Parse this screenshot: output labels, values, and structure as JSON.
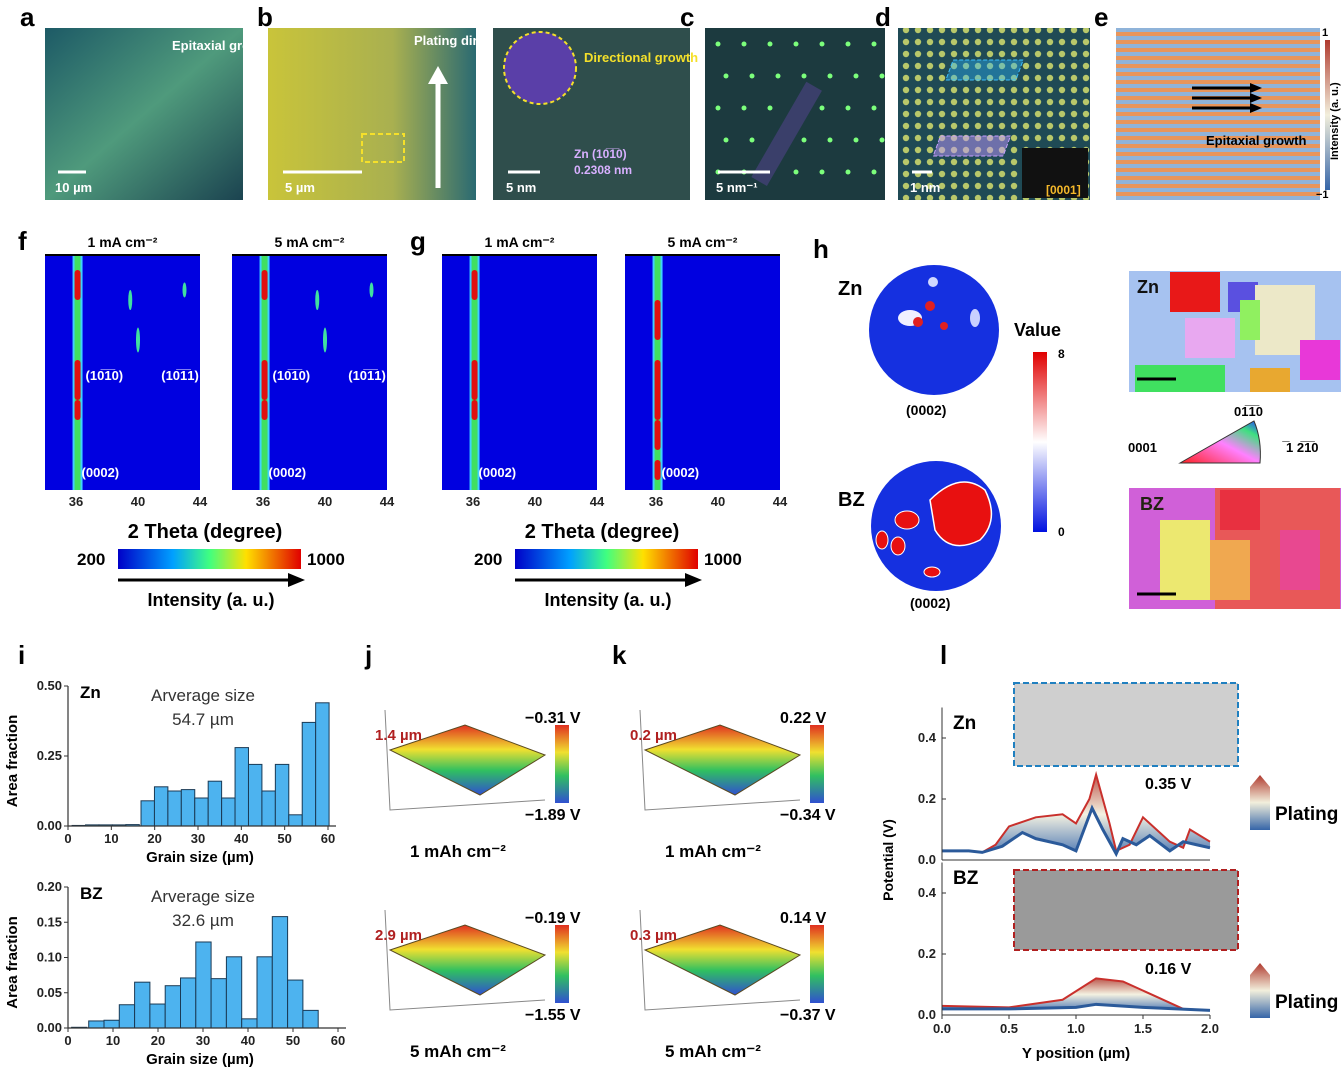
{
  "panel_labels": [
    "a",
    "b",
    "c",
    "d",
    "e",
    "f",
    "g",
    "h",
    "i",
    "j",
    "k",
    "l"
  ],
  "a": {
    "caption": "Epitaxial growth",
    "scale": "10 µm"
  },
  "b": {
    "left_scale": "5 µm",
    "arrow_label": "Plating direction",
    "right_annotation": "Directional growth",
    "plane": "Zn (10̅1̅0)",
    "spacing": "0.2308 nm",
    "right_scale": "5 nm"
  },
  "c": {
    "scale": "5 nm⁻¹"
  },
  "d": {
    "scale": "1 nm",
    "zone_axis": "[0001]"
  },
  "e": {
    "caption": "Epitaxial growth",
    "colorbar_label": "Intensity (a. u.)",
    "colorbar_max": "1",
    "colorbar_min": "−1"
  },
  "f": {
    "titles": [
      "1 mA cm⁻²",
      "5 mA cm⁻²"
    ],
    "peaks": [
      "(10̅1̅0)",
      "(10̅1̅1)",
      "(0002)"
    ],
    "xticks": [
      "36",
      "40",
      "44"
    ],
    "xlabel": "2 Theta (degree)",
    "cbar_min": "200",
    "cbar_max": "1000",
    "cbar_label": "Intensity (a. u.)"
  },
  "g": {
    "titles": [
      "1 mA cm⁻²",
      "5 mA cm⁻²"
    ],
    "peaks": [
      "(0002)"
    ],
    "xticks": [
      "36",
      "40",
      "44"
    ],
    "xlabel": "2 Theta (degree)",
    "cbar_min": "200",
    "cbar_max": "1000",
    "cbar_label": "Intensity (a. u.)"
  },
  "h": {
    "pf_labels": [
      "Zn",
      "BZ"
    ],
    "pf_plane": "(0002)",
    "value_label": "Value",
    "value_max": "8",
    "value_min": "0",
    "ebsd_labels": [
      "Zn",
      "BZ"
    ],
    "ipf": {
      "top": "01̅1̅0",
      "left": "0001",
      "right": "̅1 2̅1̅0"
    }
  },
  "j": {
    "items": [
      {
        "height": "1.4 µm",
        "vmax": "−0.31 V",
        "vmin": "−1.89 V",
        "label": "1 mAh cm⁻²"
      },
      {
        "height": "2.9 µm",
        "vmax": "−0.19 V",
        "vmin": "−1.55 V",
        "label": "5 mAh cm⁻²"
      }
    ]
  },
  "k": {
    "items": [
      {
        "height": "0.2 µm",
        "vmax": "0.22 V",
        "vmin": "−0.34 V",
        "label": "1 mAh cm⁻²"
      },
      {
        "height": "0.3 µm",
        "vmax": "0.14 V",
        "vmin": "−0.37 V",
        "label": "5 mAh cm⁻²"
      }
    ]
  },
  "chart_data": [
    {
      "type": "bar",
      "panel": "i",
      "label": "Zn",
      "annotation": "Arverage size",
      "annotation_value": "54.7 µm",
      "xlabel": "Grain size (µm)",
      "ylabel": "Area fraction",
      "xlim": [
        0,
        62
      ],
      "ylim": [
        0,
        0.5
      ],
      "xticks": [
        0,
        10,
        20,
        30,
        40,
        50,
        60
      ],
      "yticks": [
        "0.00",
        "0.25",
        "0.50"
      ],
      "bin_width": 3.1,
      "bin_centers": [
        2.5,
        5.6,
        8.7,
        11.8,
        14.9,
        18.4,
        21.5,
        24.6,
        27.7,
        30.8,
        33.9,
        37.0,
        40.1,
        43.2,
        46.3,
        49.4,
        52.5,
        55.6,
        58.7
      ],
      "values": [
        0.002,
        0.004,
        0.004,
        0.004,
        0.005,
        0.09,
        0.14,
        0.125,
        0.13,
        0.1,
        0.16,
        0.1,
        0.28,
        0.22,
        0.125,
        0.22,
        0.04,
        0.37,
        0.44
      ],
      "bar_color": "#4db3ef"
    },
    {
      "type": "bar",
      "panel": "i",
      "label": "BZ",
      "annotation": "Arverage size",
      "annotation_value": "32.6 µm",
      "xlabel": "Grain size (µm)",
      "ylabel": "Area fraction",
      "xlim": [
        0,
        60
      ],
      "ylim": [
        0,
        0.2
      ],
      "xticks": [
        0,
        10,
        20,
        30,
        40,
        50,
        60
      ],
      "yticks": [
        "0.00",
        "0.05",
        "0.10",
        "0.15",
        "0.20"
      ],
      "bin_width": 3.4,
      "bin_centers": [
        2.5,
        6.3,
        9.7,
        13.1,
        16.5,
        19.9,
        23.3,
        26.7,
        30.1,
        33.5,
        36.9,
        40.3,
        43.7,
        47.1,
        50.5,
        53.9
      ],
      "values": [
        0.001,
        0.01,
        0.011,
        0.033,
        0.065,
        0.034,
        0.06,
        0.071,
        0.122,
        0.07,
        0.101,
        0.013,
        0.101,
        0.158,
        0.068,
        0.025
      ],
      "bar_color": "#4db3ef"
    },
    {
      "type": "line",
      "panel": "l",
      "xlabel": "Y position (µm)",
      "ylabel": "Potential (V)",
      "xlim": [
        0,
        2.0
      ],
      "xticks": [
        "0.0",
        "0.5",
        "1.0",
        "1.5",
        "2.0"
      ],
      "subplots": [
        {
          "label": "Zn",
          "ylim": [
            0,
            0.5
          ],
          "yticks": [
            "0.0",
            "0.2",
            "0.4"
          ],
          "annotation": "0.35 V",
          "arrow_label": "Plating",
          "series": [
            {
              "x": [
                0,
                0.2,
                0.3,
                0.45,
                0.6,
                0.7,
                0.9,
                1.0,
                1.12,
                1.2,
                1.3,
                1.35,
                1.45,
                1.55,
                1.7,
                1.8,
                1.9,
                2.0
              ],
              "y": [
                0.03,
                0.03,
                0.025,
                0.045,
                0.09,
                0.07,
                0.05,
                0.03,
                0.17,
                0.1,
                0.02,
                0.07,
                0.05,
                0.08,
                0.03,
                0.06,
                0.05,
                0.04
              ],
              "color": "#2b5a9a"
            },
            {
              "x": [
                0,
                0.2,
                0.3,
                0.4,
                0.5,
                0.7,
                0.9,
                1.0,
                1.1,
                1.15,
                1.25,
                1.3,
                1.4,
                1.5,
                1.6,
                1.7,
                1.8,
                1.85,
                2.0
              ],
              "y": [
                0.03,
                0.03,
                0.025,
                0.05,
                0.11,
                0.14,
                0.15,
                0.12,
                0.2,
                0.28,
                0.12,
                0.03,
                0.05,
                0.14,
                0.1,
                0.06,
                0.04,
                0.1,
                0.06
              ],
              "color": "#c9302c"
            }
          ]
        },
        {
          "label": "BZ",
          "ylim": [
            0,
            0.5
          ],
          "yticks": [
            "0.0",
            "0.2",
            "0.4"
          ],
          "annotation": "0.16 V",
          "arrow_label": "Plating",
          "series": [
            {
              "x": [
                0,
                0.5,
                1.0,
                1.15,
                1.5,
                2.0
              ],
              "y": [
                0.02,
                0.02,
                0.025,
                0.035,
                0.025,
                0.015
              ],
              "color": "#2b5a9a"
            },
            {
              "x": [
                0,
                0.5,
                0.9,
                1.15,
                1.35,
                1.6,
                1.8,
                2.0
              ],
              "y": [
                0.03,
                0.025,
                0.05,
                0.12,
                0.11,
                0.06,
                0.02,
                0.015
              ],
              "color": "#c9302c"
            }
          ]
        }
      ]
    }
  ]
}
